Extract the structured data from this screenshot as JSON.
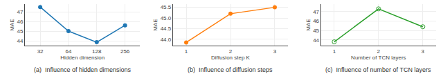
{
  "chart_data": [
    {
      "type": "line",
      "title": "(a)  Influence of hidden dimensions",
      "x": [
        32,
        64,
        128,
        256
      ],
      "values": [
        47.5,
        45.0,
        43.85,
        45.6
      ],
      "xlabel": "Hidden dimension",
      "ylabel": "MAE",
      "log": "x",
      "xlim": [
        22,
        370
      ],
      "xticks": [
        32,
        64,
        128,
        256
      ],
      "ylim": [
        43.5,
        47.8
      ],
      "yticks": [
        44,
        45,
        46,
        47
      ],
      "grid": true,
      "marker": "circle"
    },
    {
      "type": "line",
      "title": "(b)  Influence of diffusion steps",
      "x": [
        1,
        2,
        3
      ],
      "values": [
        43.85,
        45.2,
        45.5
      ],
      "xlabel": "Diffusion step K",
      "ylabel": "MAE",
      "xlim": [
        0.7,
        3.3
      ],
      "xticks": [
        1,
        2,
        3
      ],
      "ylim": [
        43.7,
        45.65
      ],
      "yticks": [
        {
          "value": 44.0,
          "label": "44.0"
        },
        44.5,
        {
          "value": 45.0,
          "label": "45.0"
        },
        45.5
      ],
      "grid": true,
      "marker": "circle"
    },
    {
      "type": "line",
      "title": "(c)  Influence of number of TCN layers",
      "x": [
        1,
        2,
        3
      ],
      "values": [
        43.8,
        47.3,
        45.4
      ],
      "xlabel": "Number of TCN layers",
      "ylabel": "MAE",
      "xlim": [
        0.7,
        3.3
      ],
      "xticks": [
        1,
        2,
        3
      ],
      "ylim": [
        43.4,
        47.8
      ],
      "yticks": [
        44,
        45,
        46,
        47
      ],
      "grid": true,
      "marker": "circle-open"
    }
  ]
}
